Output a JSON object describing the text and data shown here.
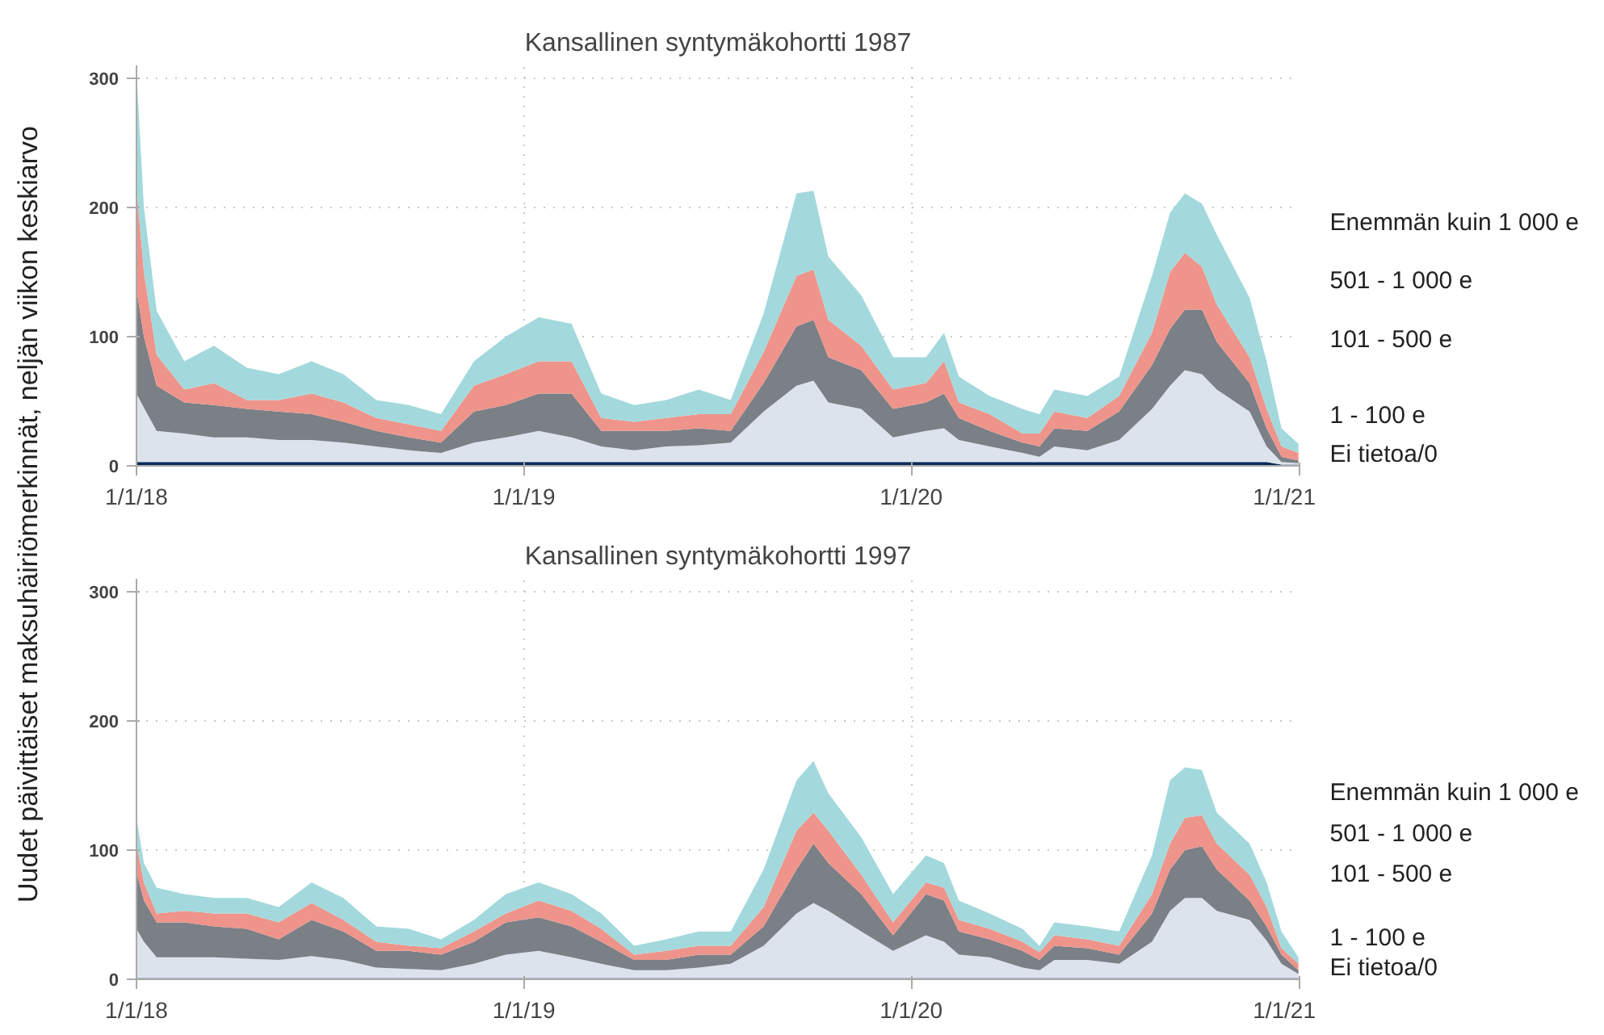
{
  "chart_data": [
    {
      "type": "area",
      "title": "Kansallinen syntymäkohortti 1987",
      "ylabel": "Uudet päivittäiset maksuhäiriömerkinnät, neljän viikon keskiarvo",
      "stacked": true,
      "grid": true,
      "x": [
        "2018-01-01",
        "2018-01-08",
        "2018-01-20",
        "2018-02-15",
        "2018-03-15",
        "2018-04-15",
        "2018-05-15",
        "2018-06-15",
        "2018-07-15",
        "2018-08-15",
        "2018-09-15",
        "2018-10-15",
        "2018-11-15",
        "2018-12-15",
        "2019-01-15",
        "2019-02-15",
        "2019-03-15",
        "2019-04-15",
        "2019-05-15",
        "2019-06-15",
        "2019-07-15",
        "2019-08-15",
        "2019-09-15",
        "2019-10-01",
        "2019-10-15",
        "2019-11-15",
        "2019-12-15",
        "2020-01-15",
        "2020-02-01",
        "2020-02-15",
        "2020-03-15",
        "2020-04-15",
        "2020-05-01",
        "2020-05-15",
        "2020-06-15",
        "2020-07-15",
        "2020-08-15",
        "2020-09-01",
        "2020-09-15",
        "2020-10-01",
        "2020-10-15",
        "2020-11-15",
        "2020-12-01",
        "2020-12-15",
        "2020-12-31"
      ],
      "xlim": [
        "2018-01-01",
        "2021-01-01"
      ],
      "xticks": [
        {
          "value": "2018-01-01",
          "label": "1/1/18"
        },
        {
          "value": "2019-01-01",
          "label": "1/1/19"
        },
        {
          "value": "2020-01-01",
          "label": "1/1/20"
        },
        {
          "value": "2021-01-01",
          "label": "1/1/21"
        }
      ],
      "ylim": [
        0,
        310
      ],
      "yticks": [
        0,
        100,
        200,
        300
      ],
      "series": [
        {
          "name": "Ei tietoa/0",
          "color": "#0b2a5b",
          "values": [
            3,
            3,
            3,
            3,
            3,
            3,
            3,
            3,
            3,
            3,
            3,
            3,
            3,
            3,
            3,
            3,
            3,
            3,
            3,
            3,
            3,
            3,
            3,
            3,
            3,
            3,
            3,
            3,
            3,
            3,
            3,
            3,
            3,
            3,
            3,
            3,
            3,
            3,
            3,
            3,
            3,
            3,
            3,
            1,
            1
          ]
        },
        {
          "name": "1 - 100 e",
          "color": "#dce3ed",
          "values": [
            53,
            42,
            24,
            22,
            19,
            19,
            17,
            17,
            15,
            12,
            9,
            7,
            15,
            19,
            24,
            19,
            12,
            9,
            12,
            13,
            15,
            39,
            59,
            63,
            46,
            41,
            19,
            24,
            26,
            17,
            12,
            7,
            4,
            12,
            9,
            17,
            41,
            59,
            71,
            68,
            56,
            39,
            12,
            2,
            1
          ]
        },
        {
          "name": "101 - 500 e",
          "color": "#7b7f86",
          "values": [
            81,
            55,
            35,
            24,
            25,
            22,
            22,
            20,
            16,
            12,
            10,
            8,
            24,
            25,
            29,
            34,
            12,
            15,
            12,
            13,
            9,
            22,
            46,
            47,
            35,
            30,
            22,
            22,
            27,
            17,
            12,
            8,
            8,
            14,
            15,
            22,
            34,
            44,
            47,
            50,
            37,
            22,
            14,
            4,
            2
          ]
        },
        {
          "name": "501 - 1 000 e",
          "color": "#ee948a",
          "values": [
            79,
            50,
            24,
            10,
            17,
            7,
            9,
            16,
            15,
            10,
            10,
            9,
            20,
            24,
            25,
            25,
            10,
            7,
            10,
            11,
            13,
            24,
            39,
            39,
            29,
            19,
            15,
            15,
            25,
            12,
            13,
            7,
            10,
            13,
            10,
            12,
            25,
            44,
            44,
            33,
            29,
            20,
            15,
            8,
            6
          ]
        },
        {
          "name": "Enemmän kuin 1 000 e",
          "color": "#a3d9dc",
          "values": [
            88,
            50,
            34,
            22,
            29,
            25,
            20,
            25,
            22,
            14,
            15,
            13,
            19,
            29,
            34,
            29,
            19,
            13,
            14,
            19,
            11,
            30,
            64,
            61,
            49,
            39,
            25,
            20,
            22,
            20,
            14,
            19,
            15,
            17,
            17,
            15,
            44,
            46,
            46,
            49,
            54,
            46,
            37,
            14,
            7
          ]
        }
      ]
    },
    {
      "type": "area",
      "title": "Kansallinen syntymäkohortti 1997",
      "stacked": true,
      "grid": true,
      "x": [
        "2018-01-01",
        "2018-01-08",
        "2018-01-20",
        "2018-02-15",
        "2018-03-15",
        "2018-04-15",
        "2018-05-15",
        "2018-06-15",
        "2018-07-15",
        "2018-08-15",
        "2018-09-15",
        "2018-10-15",
        "2018-11-15",
        "2018-12-15",
        "2019-01-15",
        "2019-02-15",
        "2019-03-15",
        "2019-04-15",
        "2019-05-15",
        "2019-06-15",
        "2019-07-15",
        "2019-08-15",
        "2019-09-15",
        "2019-10-01",
        "2019-10-15",
        "2019-11-15",
        "2019-12-15",
        "2020-01-15",
        "2020-02-01",
        "2020-02-15",
        "2020-03-15",
        "2020-04-15",
        "2020-05-01",
        "2020-05-15",
        "2020-06-15",
        "2020-07-15",
        "2020-08-15",
        "2020-09-01",
        "2020-09-15",
        "2020-10-01",
        "2020-10-15",
        "2020-11-15",
        "2020-12-01",
        "2020-12-15",
        "2020-12-31"
      ],
      "xlim": [
        "2018-01-01",
        "2021-01-01"
      ],
      "xticks": [
        {
          "value": "2018-01-01",
          "label": "1/1/18"
        },
        {
          "value": "2019-01-01",
          "label": "1/1/19"
        },
        {
          "value": "2020-01-01",
          "label": "1/1/20"
        },
        {
          "value": "2021-01-01",
          "label": "1/1/21"
        }
      ],
      "ylim": [
        0,
        310
      ],
      "yticks": [
        0,
        100,
        200,
        300
      ],
      "series": [
        {
          "name": "Ei tietoa/0",
          "color": "#0b2a5b",
          "values": [
            1,
            1,
            1,
            1,
            1,
            1,
            1,
            1,
            1,
            1,
            1,
            1,
            1,
            1,
            1,
            1,
            1,
            1,
            1,
            1,
            1,
            1,
            1,
            1,
            1,
            1,
            1,
            1,
            1,
            1,
            1,
            1,
            1,
            1,
            1,
            1,
            1,
            1,
            1,
            1,
            1,
            1,
            1,
            1,
            1
          ]
        },
        {
          "name": "1 - 100 e",
          "color": "#dce3ed",
          "values": [
            38,
            28,
            16,
            16,
            16,
            15,
            14,
            17,
            14,
            8,
            7,
            6,
            11,
            18,
            21,
            16,
            11,
            6,
            6,
            8,
            11,
            25,
            50,
            58,
            52,
            36,
            21,
            33,
            28,
            18,
            16,
            8,
            6,
            14,
            14,
            11,
            28,
            52,
            62,
            62,
            52,
            45,
            29,
            11,
            3
          ]
        },
        {
          "name": "101 - 500 e",
          "color": "#7b7f86",
          "values": [
            44,
            32,
            27,
            27,
            24,
            23,
            16,
            28,
            22,
            13,
            14,
            12,
            17,
            25,
            26,
            24,
            17,
            8,
            8,
            10,
            7,
            15,
            34,
            46,
            37,
            29,
            12,
            32,
            32,
            18,
            14,
            13,
            8,
            11,
            9,
            7,
            22,
            32,
            37,
            40,
            32,
            15,
            11,
            7,
            3
          ]
        },
        {
          "name": "501 - 1 000 e",
          "color": "#ee948a",
          "values": [
            22,
            14,
            7,
            9,
            10,
            12,
            13,
            13,
            9,
            7,
            4,
            5,
            8,
            7,
            13,
            12,
            10,
            4,
            7,
            7,
            7,
            15,
            30,
            24,
            25,
            15,
            10,
            9,
            10,
            9,
            8,
            7,
            6,
            8,
            7,
            7,
            15,
            20,
            25,
            24,
            20,
            20,
            15,
            5,
            5
          ]
        },
        {
          "name": "Enemmän kuin 1 000 e",
          "color": "#a3d9dc",
          "values": [
            20,
            15,
            20,
            13,
            12,
            12,
            12,
            16,
            17,
            12,
            13,
            7,
            9,
            15,
            14,
            13,
            12,
            7,
            9,
            11,
            11,
            29,
            39,
            40,
            29,
            29,
            22,
            21,
            19,
            15,
            12,
            10,
            5,
            10,
            10,
            11,
            30,
            49,
            39,
            35,
            24,
            24,
            19,
            13,
            5
          ]
        }
      ]
    }
  ]
}
